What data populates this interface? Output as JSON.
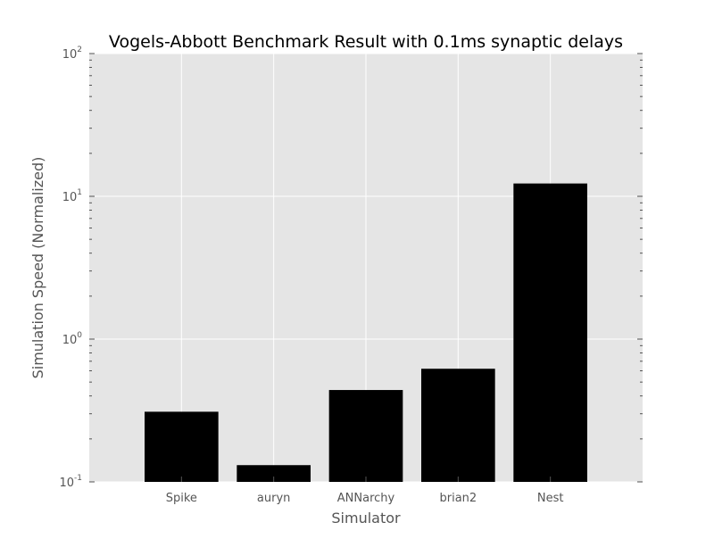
{
  "chart_data": {
    "type": "bar",
    "title": "Vogels-Abbott Benchmark Result with 0.1ms synaptic delays",
    "xlabel": "Simulator",
    "ylabel": "Simulation Speed (Normalized)",
    "categories": [
      "Spike",
      "auryn",
      "ANNarchy",
      "brian2",
      "Nest"
    ],
    "values": [
      0.31,
      0.131,
      0.44,
      0.62,
      12.3
    ],
    "yscale": "log",
    "ylim": [
      0.1,
      100
    ],
    "yticks": [
      {
        "value": 0.1,
        "base": "10",
        "exp": "-1"
      },
      {
        "value": 1,
        "base": "10",
        "exp": "0"
      },
      {
        "value": 10,
        "base": "10",
        "exp": "1"
      },
      {
        "value": 100,
        "base": "10",
        "exp": "2"
      }
    ],
    "grid": true,
    "colors": {
      "bar": "#000000",
      "plot_background": "#e5e5e5",
      "grid": "#ffffff",
      "text": "#555555",
      "title": "#000000"
    }
  }
}
